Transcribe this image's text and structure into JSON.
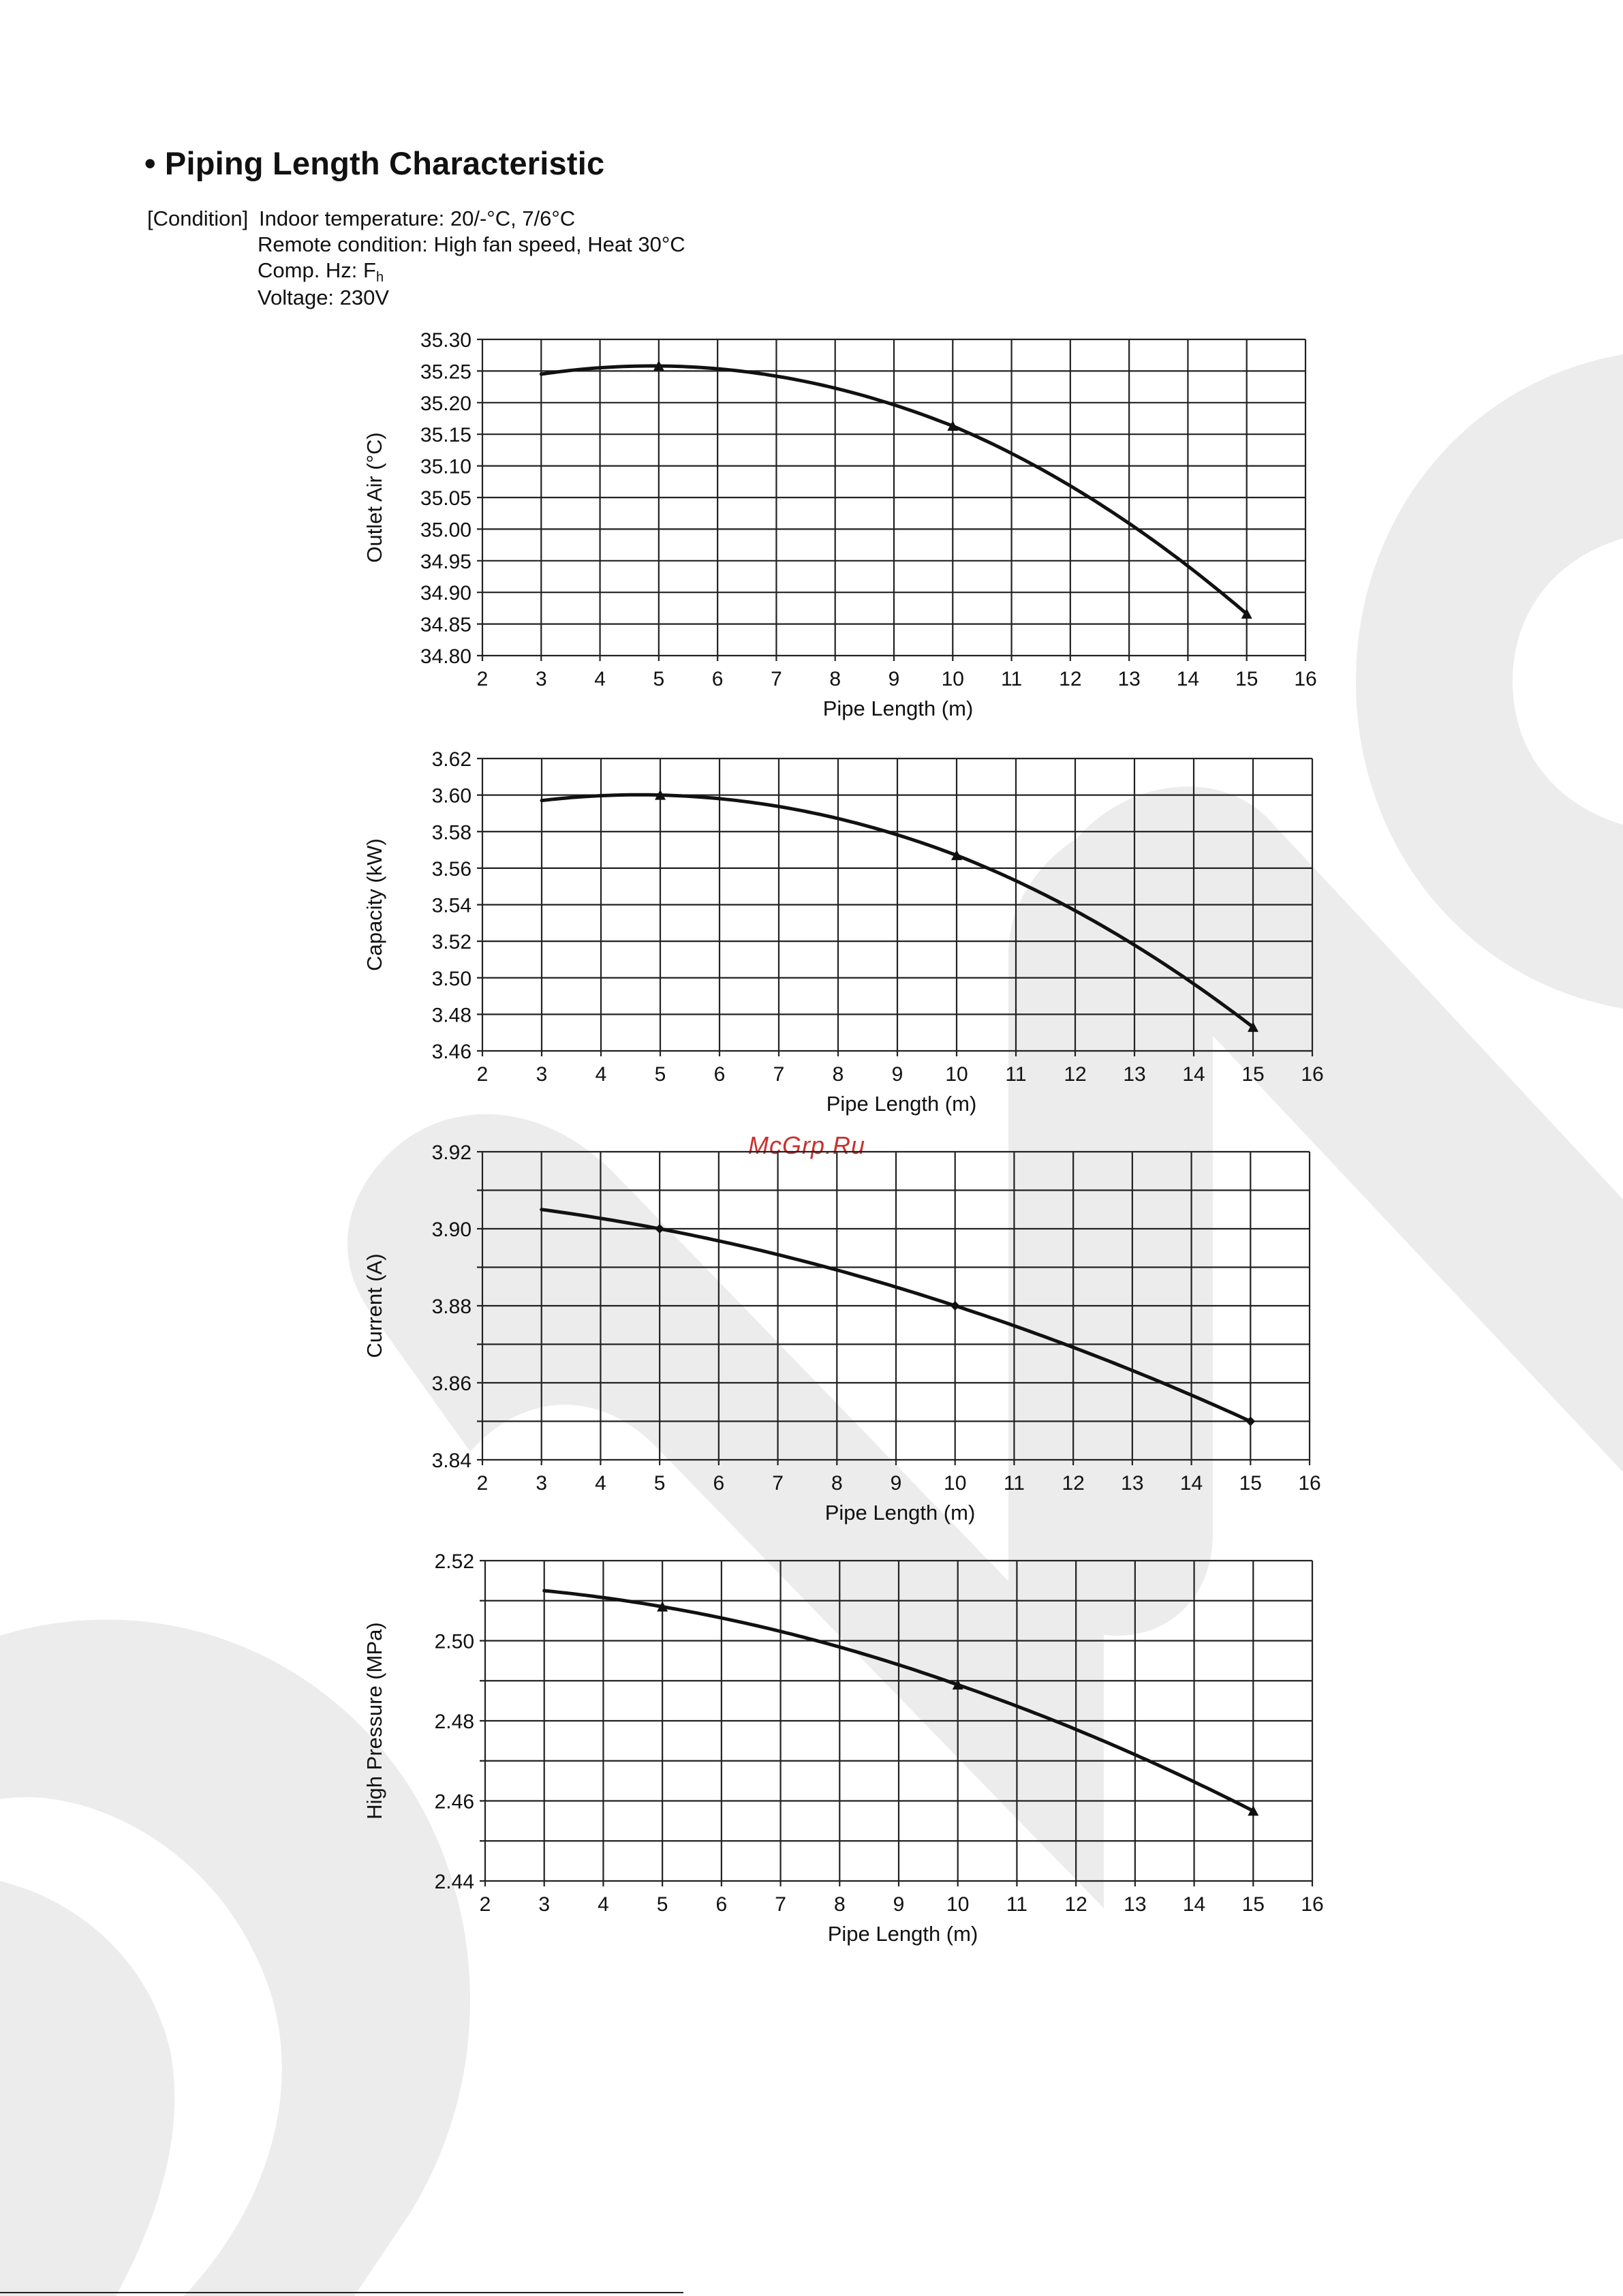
{
  "title": "• Piping Length Characteristic",
  "condition": {
    "label": "[Condition]",
    "indoor": "Indoor temperature: 20/-°C, 7/6°C",
    "remote": "Remote condition: High fan speed, Heat 30°C",
    "comp_prefix": "Comp. Hz: F",
    "comp_sub": "h",
    "voltage": "Voltage: 230V"
  },
  "watermark_text": "McGrp.Ru",
  "colors": {
    "line": "#111111",
    "grid": "#222222",
    "watermark_text": "#c8322f",
    "bg_shape": "#ececec"
  },
  "chart_data": [
    {
      "type": "line",
      "xlabel": "Pipe Length (m)",
      "ylabel": "Outlet Air (°C)",
      "xlim": [
        2,
        16
      ],
      "ylim": [
        34.8,
        35.3
      ],
      "xticks": [
        "2",
        "3",
        "4",
        "5",
        "6",
        "7",
        "8",
        "9",
        "10",
        "11",
        "12",
        "13",
        "14",
        "15",
        "16"
      ],
      "yticks": [
        "34.80",
        "34.85",
        "34.90",
        "34.95",
        "35.00",
        "35.05",
        "35.10",
        "35.15",
        "35.20",
        "35.25",
        "35.30"
      ],
      "grid": true,
      "series": [
        {
          "x": [
            3,
            5,
            10,
            15
          ],
          "y": [
            35.245,
            35.258,
            35.163,
            34.866
          ],
          "markers": [
            "none",
            "triangle",
            "triangle",
            "triangle"
          ]
        }
      ]
    },
    {
      "type": "line",
      "xlabel": "Pipe Length (m)",
      "ylabel": "Capacity (kW)",
      "xlim": [
        2,
        16
      ],
      "ylim": [
        3.46,
        3.62
      ],
      "xticks": [
        "2",
        "3",
        "4",
        "5",
        "6",
        "7",
        "8",
        "9",
        "10",
        "11",
        "12",
        "13",
        "14",
        "15",
        "16"
      ],
      "yticks": [
        "3.46",
        "3.48",
        "3.50",
        "3.52",
        "3.54",
        "3.56",
        "3.58",
        "3.60",
        "3.62"
      ],
      "grid": true,
      "series": [
        {
          "x": [
            3,
            5,
            10,
            15
          ],
          "y": [
            3.597,
            3.6,
            3.567,
            3.473
          ],
          "markers": [
            "none",
            "triangle",
            "triangle",
            "triangle"
          ]
        }
      ]
    },
    {
      "type": "line",
      "xlabel": "Pipe Length (m)",
      "ylabel": "Current (A)",
      "xlim": [
        2,
        16
      ],
      "ylim": [
        3.84,
        3.92
      ],
      "xticks": [
        "2",
        "3",
        "4",
        "5",
        "6",
        "7",
        "8",
        "9",
        "10",
        "11",
        "12",
        "13",
        "14",
        "15",
        "16"
      ],
      "yticks": [
        "3.84",
        "",
        "3.86",
        "",
        "3.88",
        "",
        "3.90",
        "",
        "3.92"
      ],
      "grid": true,
      "series": [
        {
          "x": [
            3,
            5,
            10,
            15
          ],
          "y": [
            3.905,
            3.9,
            3.88,
            3.85
          ],
          "markers": [
            "none",
            "diamond",
            "diamond",
            "diamond"
          ]
        }
      ]
    },
    {
      "type": "line",
      "xlabel": "Pipe Length (m)",
      "ylabel": "High Pressure (MPa)",
      "xlim": [
        2,
        16
      ],
      "ylim": [
        2.44,
        2.52
      ],
      "xticks": [
        "2",
        "3",
        "4",
        "5",
        "6",
        "7",
        "8",
        "9",
        "10",
        "11",
        "12",
        "13",
        "14",
        "15",
        "16"
      ],
      "yticks": [
        "2.44",
        "",
        "2.46",
        "",
        "2.48",
        "",
        "2.50",
        "",
        "2.52"
      ],
      "grid": true,
      "series": [
        {
          "x": [
            3,
            5,
            10,
            15
          ],
          "y": [
            2.5125,
            2.5085,
            2.489,
            2.4575
          ],
          "markers": [
            "none",
            "triangle",
            "triangle",
            "triangle"
          ]
        }
      ]
    }
  ]
}
